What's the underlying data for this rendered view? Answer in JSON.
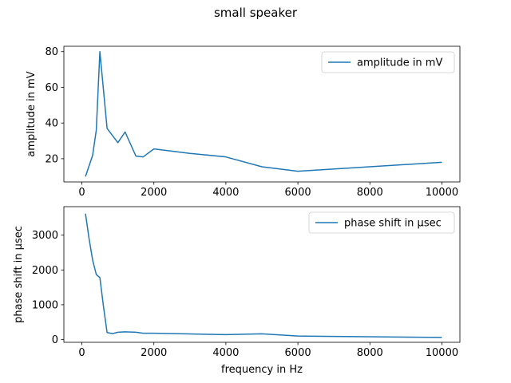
{
  "figure_title": "small speaker",
  "colors": {
    "line": "#1f77b4",
    "axis": "#000000",
    "legend_border": "#cccccc"
  },
  "chart_data": [
    {
      "type": "line",
      "xlabel": "",
      "ylabel": "amplitude in mV",
      "xlim": [
        -500,
        10500
      ],
      "ylim": [
        7,
        83
      ],
      "xticks": [
        0,
        2000,
        4000,
        6000,
        8000,
        10000
      ],
      "xtick_labels": [
        "0",
        "2000",
        "4000",
        "6000",
        "8000",
        "10000"
      ],
      "yticks": [
        20,
        40,
        60,
        80
      ],
      "ytick_labels": [
        "20",
        "40",
        "60",
        "80"
      ],
      "legend_position": "upper-right",
      "series": [
        {
          "name": "amplitude in mV",
          "x": [
            100,
            200,
            300,
            400,
            500,
            700,
            1000,
            1200,
            1500,
            1700,
            2000,
            3000,
            4000,
            5000,
            6000,
            10000
          ],
          "y": [
            10,
            16,
            22,
            36,
            80,
            37,
            29,
            35,
            21.5,
            21,
            25.5,
            23,
            21,
            15.5,
            13,
            18
          ]
        }
      ]
    },
    {
      "type": "line",
      "xlabel": "frequency in Hz",
      "ylabel": "phase shift in µsec",
      "xlim": [
        -500,
        10500
      ],
      "ylim": [
        -80,
        3820
      ],
      "xticks": [
        0,
        2000,
        4000,
        6000,
        8000,
        10000
      ],
      "xtick_labels": [
        "0",
        "2000",
        "4000",
        "6000",
        "8000",
        "10000"
      ],
      "yticks": [
        0,
        1000,
        2000,
        3000
      ],
      "ytick_labels": [
        "0",
        "1000",
        "2000",
        "3000"
      ],
      "legend_position": "upper-right",
      "series": [
        {
          "name": "phase shift in µsec",
          "x": [
            100,
            200,
            300,
            400,
            500,
            600,
            700,
            850,
            1000,
            1200,
            1500,
            1700,
            2000,
            3000,
            4000,
            5000,
            6000,
            10000
          ],
          "y": [
            3620,
            2900,
            2280,
            1870,
            1780,
            950,
            200,
            170,
            210,
            220,
            210,
            180,
            180,
            160,
            140,
            165,
            100,
            60
          ]
        }
      ]
    }
  ]
}
